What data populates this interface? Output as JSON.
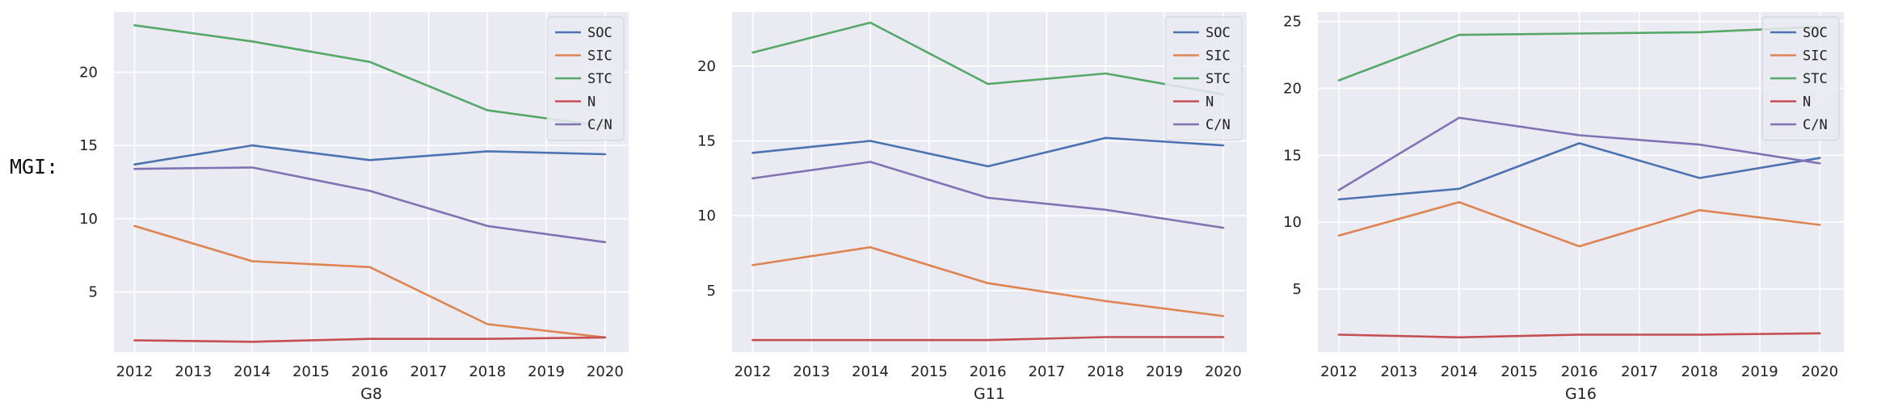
{
  "page_label": "MGI:",
  "chart_data": [
    {
      "type": "line",
      "title": "",
      "xlabel": "G8",
      "ylabel": "",
      "x": [
        2012,
        2014,
        2016,
        2018,
        2020
      ],
      "xticks": [
        2012,
        2013,
        2014,
        2015,
        2016,
        2017,
        2018,
        2019,
        2020
      ],
      "xlim": [
        2011.65,
        2020.4
      ],
      "ylim": [
        0.9,
        24.1
      ],
      "yticks": [
        5,
        10,
        15,
        20
      ],
      "grid": true,
      "legend": "top-right",
      "series": [
        {
          "name": "SOC",
          "color": "#4c72b0",
          "values": [
            13.7,
            15.0,
            14.0,
            14.6,
            14.4
          ]
        },
        {
          "name": "SIC",
          "color": "#dd8452",
          "values": [
            9.5,
            7.1,
            6.7,
            2.8,
            1.9
          ]
        },
        {
          "name": "STC",
          "color": "#55a868",
          "values": [
            23.2,
            22.1,
            20.7,
            17.4,
            16.3
          ]
        },
        {
          "name": "N",
          "color": "#c44e52",
          "values": [
            1.7,
            1.6,
            1.8,
            1.8,
            1.9
          ]
        },
        {
          "name": "C/N",
          "color": "#8172b3",
          "values": [
            13.4,
            13.5,
            11.9,
            9.5,
            8.4
          ]
        }
      ]
    },
    {
      "type": "line",
      "title": "",
      "xlabel": "G11",
      "ylabel": "",
      "x": [
        2012,
        2014,
        2016,
        2018,
        2020
      ],
      "xticks": [
        2012,
        2013,
        2014,
        2015,
        2016,
        2017,
        2018,
        2019,
        2020
      ],
      "xlim": [
        2011.65,
        2020.4
      ],
      "ylim": [
        0.9,
        23.6
      ],
      "yticks": [
        5,
        10,
        15,
        20
      ],
      "grid": true,
      "legend": "top-right",
      "series": [
        {
          "name": "SOC",
          "color": "#4c72b0",
          "values": [
            14.2,
            15.0,
            13.3,
            15.2,
            14.7
          ]
        },
        {
          "name": "SIC",
          "color": "#dd8452",
          "values": [
            6.7,
            7.9,
            5.5,
            4.3,
            3.3
          ]
        },
        {
          "name": "STC",
          "color": "#55a868",
          "values": [
            20.9,
            22.9,
            18.8,
            19.5,
            18.1
          ]
        },
        {
          "name": "N",
          "color": "#c44e52",
          "values": [
            1.7,
            1.7,
            1.7,
            1.9,
            1.9
          ]
        },
        {
          "name": "C/N",
          "color": "#8172b3",
          "values": [
            12.5,
            13.6,
            11.2,
            10.4,
            9.2
          ]
        }
      ]
    },
    {
      "type": "line",
      "title": "",
      "xlabel": "G16",
      "ylabel": "",
      "x": [
        2012,
        2014,
        2016,
        2018,
        2020
      ],
      "xticks": [
        2012,
        2013,
        2014,
        2015,
        2016,
        2017,
        2018,
        2019,
        2020
      ],
      "xlim": [
        2011.65,
        2020.4
      ],
      "ylim": [
        0.3,
        25.7
      ],
      "yticks": [
        5,
        10,
        15,
        20,
        25
      ],
      "grid": true,
      "legend": "top-right",
      "series": [
        {
          "name": "SOC",
          "color": "#4c72b0",
          "values": [
            11.7,
            12.5,
            15.9,
            13.3,
            14.8
          ]
        },
        {
          "name": "SIC",
          "color": "#dd8452",
          "values": [
            9.0,
            11.5,
            8.2,
            10.9,
            9.8
          ]
        },
        {
          "name": "STC",
          "color": "#55a868",
          "values": [
            20.6,
            24.0,
            24.1,
            24.2,
            24.6
          ]
        },
        {
          "name": "N",
          "color": "#c44e52",
          "values": [
            1.6,
            1.4,
            1.6,
            1.6,
            1.7
          ]
        },
        {
          "name": "C/N",
          "color": "#8172b3",
          "values": [
            12.4,
            17.8,
            16.5,
            15.8,
            14.4
          ]
        }
      ]
    }
  ]
}
